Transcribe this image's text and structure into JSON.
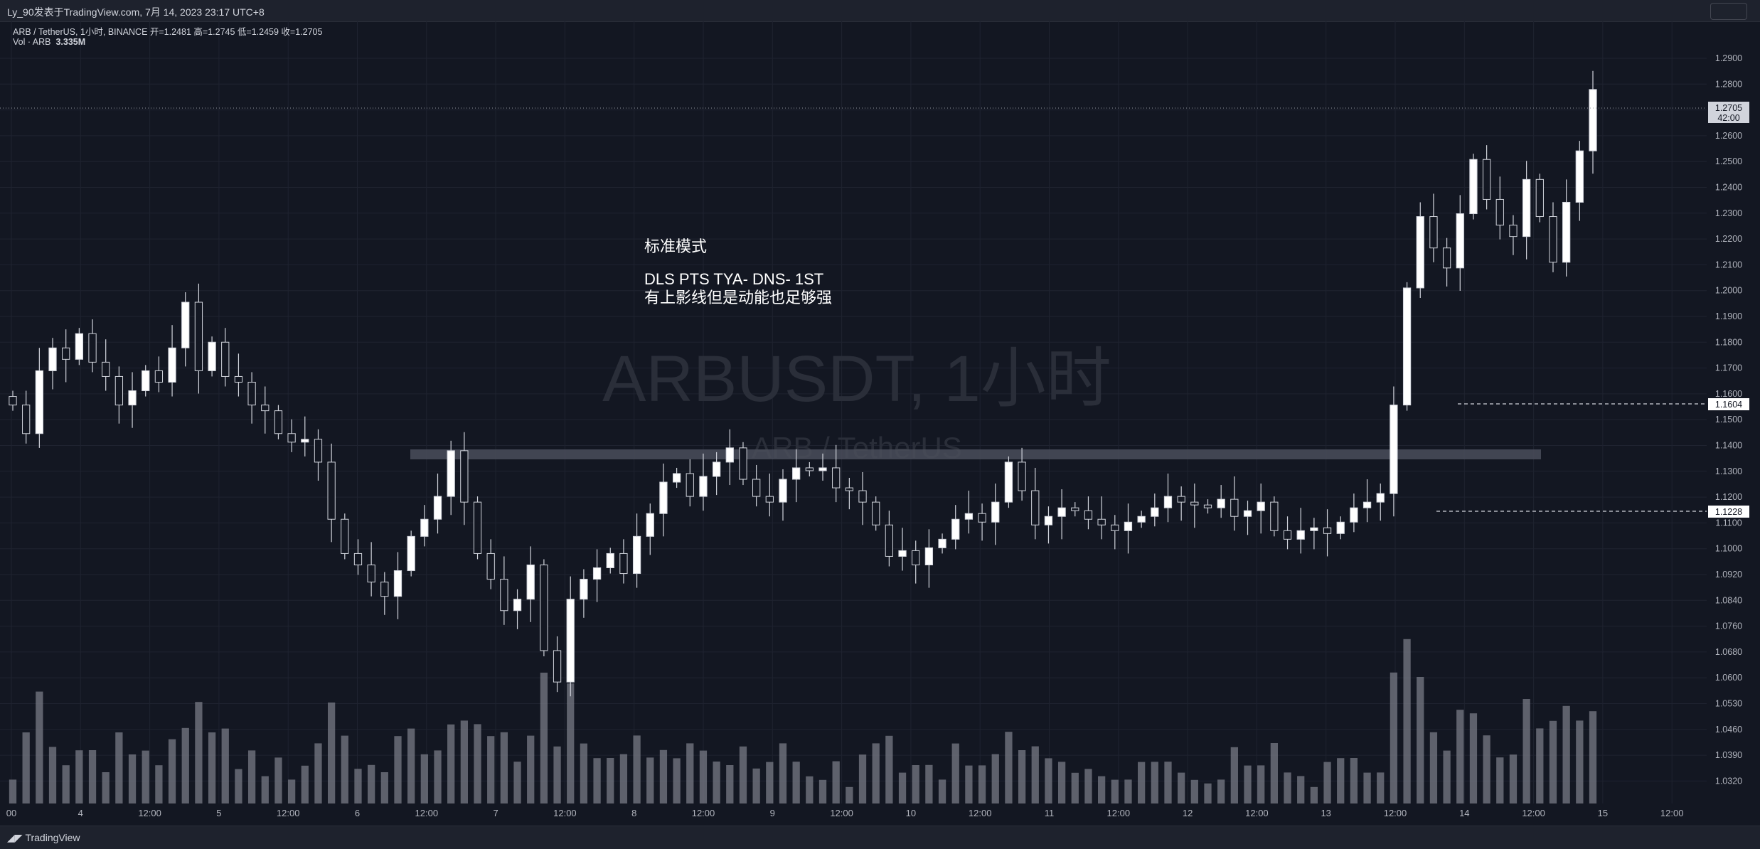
{
  "header": {
    "title": "Ly_90发表于TradingView.com,  7月 14, 2023 23:17 UTC+8"
  },
  "legend": {
    "symbol_line": "ARB / TetherUS, 1小时, BINANCE  开=1.2481  高=1.2745  低=1.2459  收=1.2705",
    "vol_label": "Vol · ARB",
    "vol_value": "3.335M"
  },
  "watermark": {
    "main": "ARBUSDT, 1小时",
    "sub": "ARB / TetherUS"
  },
  "annotation": {
    "line1": "标准模式",
    "line2": "DLS PTS TYA- DNS- 1ST",
    "line3": "有上影线但是动能也足够强"
  },
  "footer": {
    "brand": "TradingView"
  },
  "colors": {
    "background": "#131722",
    "candle_up": "#ffffff",
    "candle_down": "#131722",
    "volume": "#787b86",
    "grid": "#1f2330",
    "zone": "#4a4e5a"
  },
  "chart_data": {
    "type": "candlestick",
    "symbol": "ARB / TetherUS",
    "interval": "1小时",
    "exchange": "BINANCE",
    "last_ohlc": {
      "open": 1.2481,
      "high": 1.2745,
      "low": 1.2459,
      "close": 1.2705
    },
    "current_price_label": "1.2705",
    "countdown_label": "42:00",
    "price_markers": [
      "1.1604",
      "1.1228"
    ],
    "y_ticks": [
      "1.2900",
      "1.2800",
      "1.2700",
      "1.2600",
      "1.2500",
      "1.2400",
      "1.2300",
      "1.2200",
      "1.2100",
      "1.2000",
      "1.1900",
      "1.1800",
      "1.1700",
      "1.1600",
      "1.1500",
      "1.1400",
      "1.1300",
      "1.1200",
      "1.1100",
      "1.1000",
      "1.0920",
      "1.0840",
      "1.0760",
      "1.0680",
      "1.0600",
      "1.0530",
      "1.0460",
      "1.0390",
      "1.0320"
    ],
    "x_ticks": [
      "00",
      "4",
      "12:00",
      "5",
      "12:00",
      "6",
      "12:00",
      "7",
      "12:00",
      "8",
      "12:00",
      "9",
      "12:00",
      "10",
      "12:00",
      "11",
      "12:00",
      "12",
      "12:00",
      "13",
      "12:00",
      "14",
      "12:00",
      "15",
      "12:00"
    ],
    "zone": {
      "price": 1.1433,
      "from_label": "6 12:00",
      "to_label": "13 12:00"
    },
    "closes": [
      1.16,
      1.15,
      1.172,
      1.18,
      1.176,
      1.185,
      1.175,
      1.17,
      1.16,
      1.165,
      1.172,
      1.168,
      1.18,
      1.196,
      1.172,
      1.182,
      1.17,
      1.168,
      1.16,
      1.158,
      1.15,
      1.147,
      1.148,
      1.14,
      1.12,
      1.108,
      1.104,
      1.098,
      1.093,
      1.102,
      1.114,
      1.12,
      1.128,
      1.144,
      1.126,
      1.108,
      1.099,
      1.088,
      1.092,
      1.104,
      1.074,
      1.063,
      1.092,
      1.099,
      1.103,
      1.108,
      1.101,
      1.114,
      1.122,
      1.133,
      1.136,
      1.128,
      1.135,
      1.14,
      1.145,
      1.134,
      1.128,
      1.126,
      1.134,
      1.138,
      1.137,
      1.138,
      1.131,
      1.13,
      1.126,
      1.118,
      1.107,
      1.109,
      1.104,
      1.11,
      1.113,
      1.12,
      1.122,
      1.119,
      1.126,
      1.14,
      1.13,
      1.118,
      1.121,
      1.124,
      1.123,
      1.12,
      1.118,
      1.116,
      1.119,
      1.121,
      1.124,
      1.128,
      1.126,
      1.125,
      1.124,
      1.127,
      1.121,
      1.123,
      1.126,
      1.116,
      1.113,
      1.116,
      1.117,
      1.115,
      1.119,
      1.124,
      1.126,
      1.129,
      1.16,
      1.201,
      1.226,
      1.215,
      1.208,
      1.227,
      1.246,
      1.232,
      1.223,
      1.219,
      1.239,
      1.226,
      1.21,
      1.231,
      1.249,
      1.2705
    ]
  }
}
